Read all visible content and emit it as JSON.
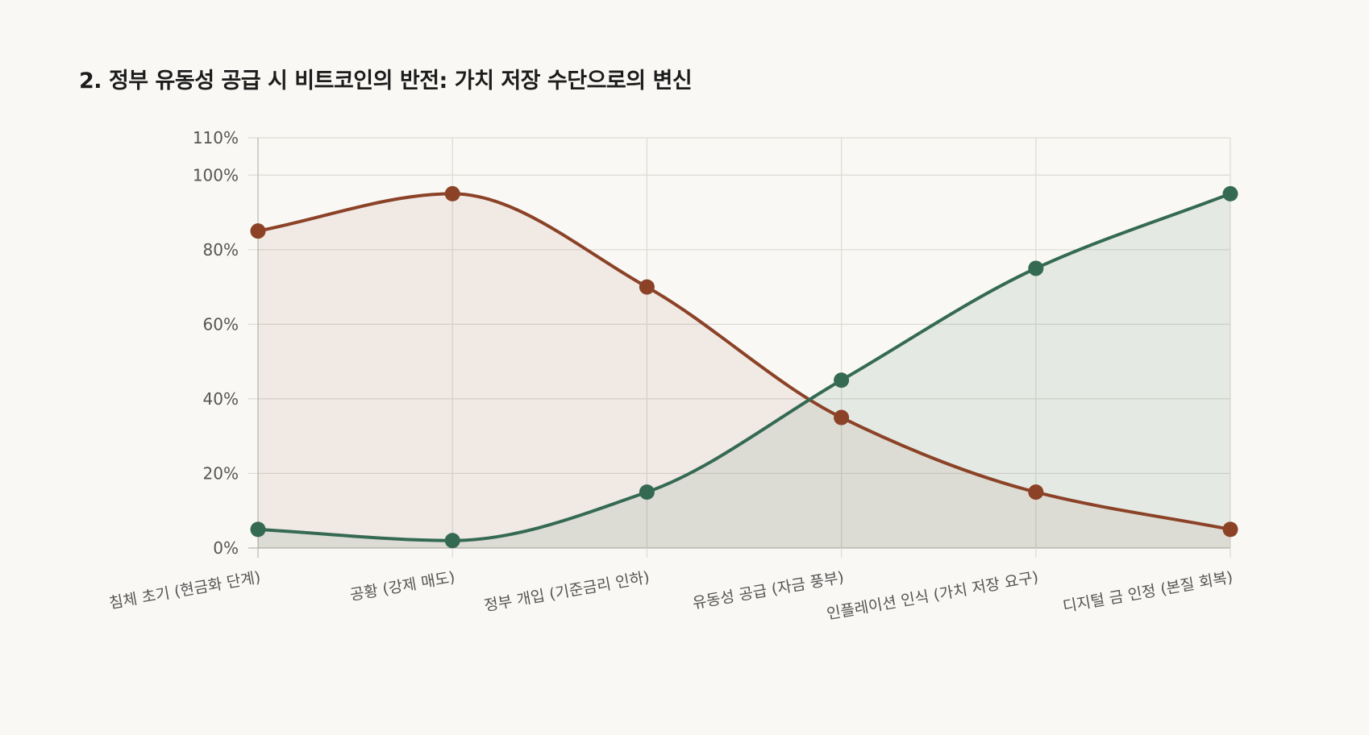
{
  "chart_data": {
    "type": "line",
    "title": "2. 정부 유동성 공급 시 비트코인의 반전: 가치 저장 수단으로의 변신",
    "categories": [
      "침체 초기 (현금화 단계)",
      "공황 (강제 매도)",
      "정부 개입 (기준금리 인하)",
      "유동성 공급 (자금 풍부)",
      "인플레이션 인식 (가치 저장 요구)",
      "디지털 금 인정 (본질 회복)"
    ],
    "series": [
      {
        "color": "#8b4226",
        "fill": "rgba(139,66,38,0.08)",
        "values": [
          85,
          95,
          70,
          35,
          15,
          5
        ]
      },
      {
        "color": "#356a52",
        "fill": "rgba(53,106,82,0.10)",
        "values": [
          5,
          2,
          15,
          45,
          75,
          95
        ]
      }
    ],
    "yticks": [
      {
        "value": 0,
        "label": "0%"
      },
      {
        "value": 20,
        "label": "20%"
      },
      {
        "value": 40,
        "label": "40%"
      },
      {
        "value": 60,
        "label": "60%"
      },
      {
        "value": 80,
        "label": "80%"
      },
      {
        "value": 100,
        "label": "100%"
      },
      {
        "value": 110,
        "label": "110%"
      }
    ],
    "ylim": [
      0,
      110
    ],
    "grid": true,
    "smooth": true,
    "legend": "none"
  }
}
